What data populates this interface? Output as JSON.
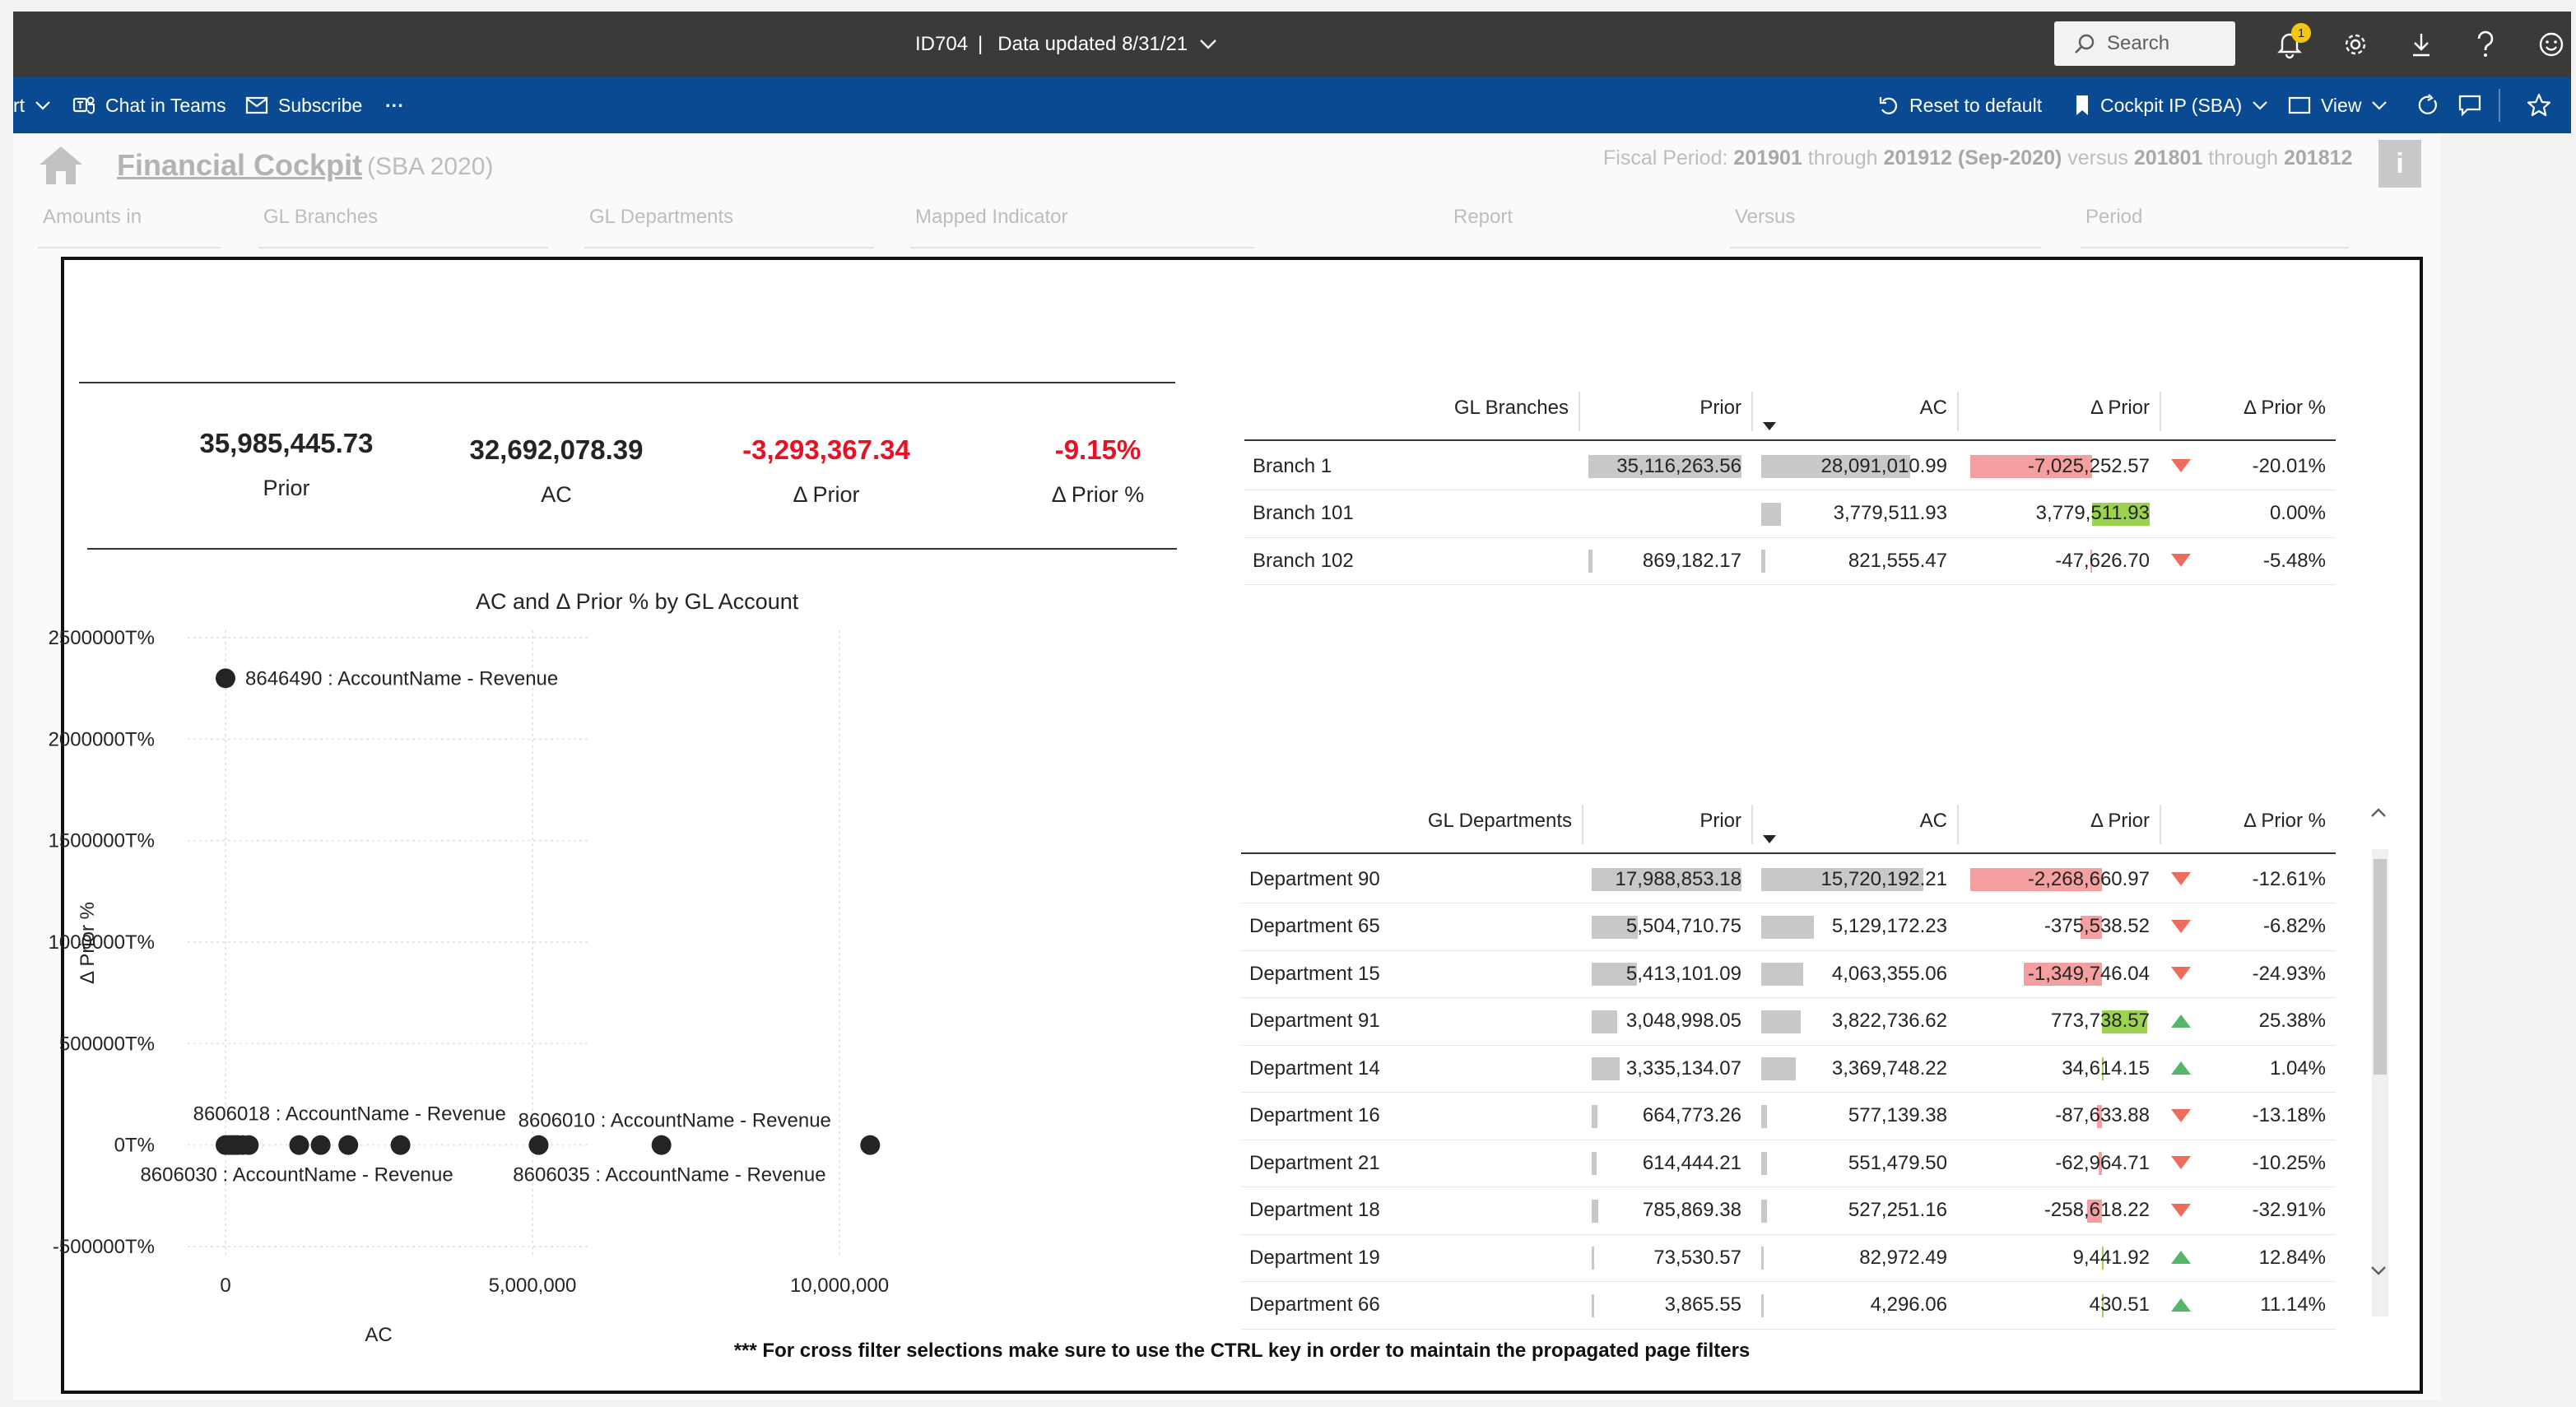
{
  "topbar": {
    "report_id": "ID704",
    "separator": "|",
    "data_updated": "Data updated 8/31/21",
    "search_placeholder": "Search",
    "notification_count": "1",
    "icons": [
      "bell-icon",
      "gear-icon",
      "download-icon",
      "help-icon",
      "smiley-icon"
    ]
  },
  "actionbar": {
    "export_partial": "rt",
    "chat_in_teams": "Chat in Teams",
    "subscribe": "Subscribe",
    "more": "···",
    "reset": "Reset to default",
    "bookmark": "Cockpit IP (SBA)",
    "view": "View"
  },
  "report": {
    "title": "Financial Cockpit",
    "subtitle": "(SBA 2020)",
    "fiscal_prefix": "Fiscal Period: ",
    "fiscal_from": "201901",
    "fiscal_through_word": " through ",
    "fiscal_to": "201912 (Sep-2020)",
    "fiscal_versus_word": " versus ",
    "fiscal_cmp_from": "201801",
    "fiscal_cmp_to": "201812",
    "info": "i",
    "filters": [
      "Amounts in",
      "GL Branches",
      "GL Departments",
      "Mapped Indicator",
      "Report",
      "Versus",
      "Period"
    ]
  },
  "kpis": [
    {
      "value": "35,985,445.73",
      "label": "Prior"
    },
    {
      "value": "32,692,078.39",
      "label": "AC"
    },
    {
      "value": "-3,293,367.34",
      "label": "Δ Prior"
    },
    {
      "value": "-9.15%",
      "label": "Δ Prior %"
    }
  ],
  "chart_data": {
    "type": "scatter",
    "title": "AC and Δ Prior % by GL Account",
    "xlabel": "AC",
    "ylabel": "Δ Prior %",
    "x_ticks": [
      "0",
      "5,000,000",
      "10,000,000"
    ],
    "y_ticks": [
      "2500000T%",
      "2000000T%",
      "1500000T%",
      "1000000T%",
      "500000T%",
      "0T%",
      "-500000T%"
    ],
    "xlim": [
      -500000,
      12500000
    ],
    "ylim": [
      -500000,
      2500000
    ],
    "points": [
      {
        "x": 0,
        "y": 2300000,
        "label": "8646490 : AccountName - Revenue"
      },
      {
        "x": 0,
        "y": 0
      },
      {
        "x": 50000,
        "y": 0
      },
      {
        "x": 100000,
        "y": 0
      },
      {
        "x": 150000,
        "y": 0
      },
      {
        "x": 200000,
        "y": 0
      },
      {
        "x": 280000,
        "y": 0
      },
      {
        "x": 380000,
        "y": 0
      },
      {
        "x": 1200000,
        "y": 0
      },
      {
        "x": 1550000,
        "y": 0
      },
      {
        "x": 2000000,
        "y": 0
      },
      {
        "x": 2850000,
        "y": 0,
        "label": "8606018 : AccountName - Revenue"
      },
      {
        "x": 5100000,
        "y": 0,
        "label": "8606030 : AccountName - Revenue"
      },
      {
        "x": 7100000,
        "y": 0,
        "label": "8606010 : AccountName - Revenue"
      },
      {
        "x": 10500000,
        "y": 0,
        "label": "8606035 : AccountName - Revenue"
      }
    ]
  },
  "branches_table": {
    "headers": [
      "GL Branches",
      "Prior",
      "AC",
      "Δ Prior",
      "Δ Prior %"
    ],
    "rows": [
      {
        "name": "Branch 1",
        "prior": "35,116,263.56",
        "ac": "28,091,010.99",
        "delta": "-7,025,252.57",
        "pct": "-20.01%",
        "dir": "down",
        "prior_v": 35116263.56,
        "ac_v": 28091010.99,
        "delta_v": -7025252.57
      },
      {
        "name": "Branch 101",
        "prior": "",
        "ac": "3,779,511.93",
        "delta": "3,779,511.93",
        "pct": "0.00%",
        "dir": "none",
        "prior_v": 0,
        "ac_v": 3779511.93,
        "delta_v": 3779511.93
      },
      {
        "name": "Branch 102",
        "prior": "869,182.17",
        "ac": "821,555.47",
        "delta": "-47,626.70",
        "pct": "-5.48%",
        "dir": "down",
        "prior_v": 869182.17,
        "ac_v": 821555.47,
        "delta_v": -47626.7
      }
    ]
  },
  "departments_table": {
    "headers": [
      "GL Departments",
      "Prior",
      "AC",
      "Δ Prior",
      "Δ Prior %"
    ],
    "rows": [
      {
        "name": "Department 90",
        "prior": "17,988,853.18",
        "ac": "15,720,192.21",
        "delta": "-2,268,660.97",
        "pct": "-12.61%",
        "dir": "down",
        "prior_v": 17988853.18,
        "ac_v": 15720192.21,
        "delta_v": -2268660.97
      },
      {
        "name": "Department 65",
        "prior": "5,504,710.75",
        "ac": "5,129,172.23",
        "delta": "-375,538.52",
        "pct": "-6.82%",
        "dir": "down",
        "prior_v": 5504710.75,
        "ac_v": 5129172.23,
        "delta_v": -375538.52
      },
      {
        "name": "Department 15",
        "prior": "5,413,101.09",
        "ac": "4,063,355.06",
        "delta": "-1,349,746.04",
        "pct": "-24.93%",
        "dir": "down",
        "prior_v": 5413101.09,
        "ac_v": 4063355.06,
        "delta_v": -1349746.04
      },
      {
        "name": "Department 91",
        "prior": "3,048,998.05",
        "ac": "3,822,736.62",
        "delta": "773,738.57",
        "pct": "25.38%",
        "dir": "up",
        "prior_v": 3048998.05,
        "ac_v": 3822736.62,
        "delta_v": 773738.57
      },
      {
        "name": "Department 14",
        "prior": "3,335,134.07",
        "ac": "3,369,748.22",
        "delta": "34,614.15",
        "pct": "1.04%",
        "dir": "up",
        "prior_v": 3335134.07,
        "ac_v": 3369748.22,
        "delta_v": 34614.15
      },
      {
        "name": "Department 16",
        "prior": "664,773.26",
        "ac": "577,139.38",
        "delta": "-87,633.88",
        "pct": "-13.18%",
        "dir": "down",
        "prior_v": 664773.26,
        "ac_v": 577139.38,
        "delta_v": -87633.88
      },
      {
        "name": "Department 21",
        "prior": "614,444.21",
        "ac": "551,479.50",
        "delta": "-62,964.71",
        "pct": "-10.25%",
        "dir": "down",
        "prior_v": 614444.21,
        "ac_v": 551479.5,
        "delta_v": -62964.71
      },
      {
        "name": "Department 18",
        "prior": "785,869.38",
        "ac": "527,251.16",
        "delta": "-258,618.22",
        "pct": "-32.91%",
        "dir": "down",
        "prior_v": 785869.38,
        "ac_v": 527251.16,
        "delta_v": -258618.22
      },
      {
        "name": "Department 19",
        "prior": "73,530.57",
        "ac": "82,972.49",
        "delta": "9,441.92",
        "pct": "12.84%",
        "dir": "up",
        "prior_v": 73530.57,
        "ac_v": 82972.49,
        "delta_v": 9441.92
      },
      {
        "name": "Department 66",
        "prior": "3,865.55",
        "ac": "4,296.06",
        "delta": "430.51",
        "pct": "11.14%",
        "dir": "up",
        "prior_v": 3865.55,
        "ac_v": 4296.06,
        "delta_v": 430.51
      }
    ]
  },
  "footnote": "*** For cross filter selections make sure to use the CTRL key in order to maintain the propagated page filters",
  "colors": {
    "topbar": "#3b3a39",
    "actionbar": "#0a4a93",
    "negative_text": "#e81123",
    "bar_grey": "#c8c8c8",
    "bar_red": "#f4a0a0",
    "bar_green": "#9bd24f",
    "tri_down": "#ef6b5c",
    "tri_up": "#55b56b"
  }
}
